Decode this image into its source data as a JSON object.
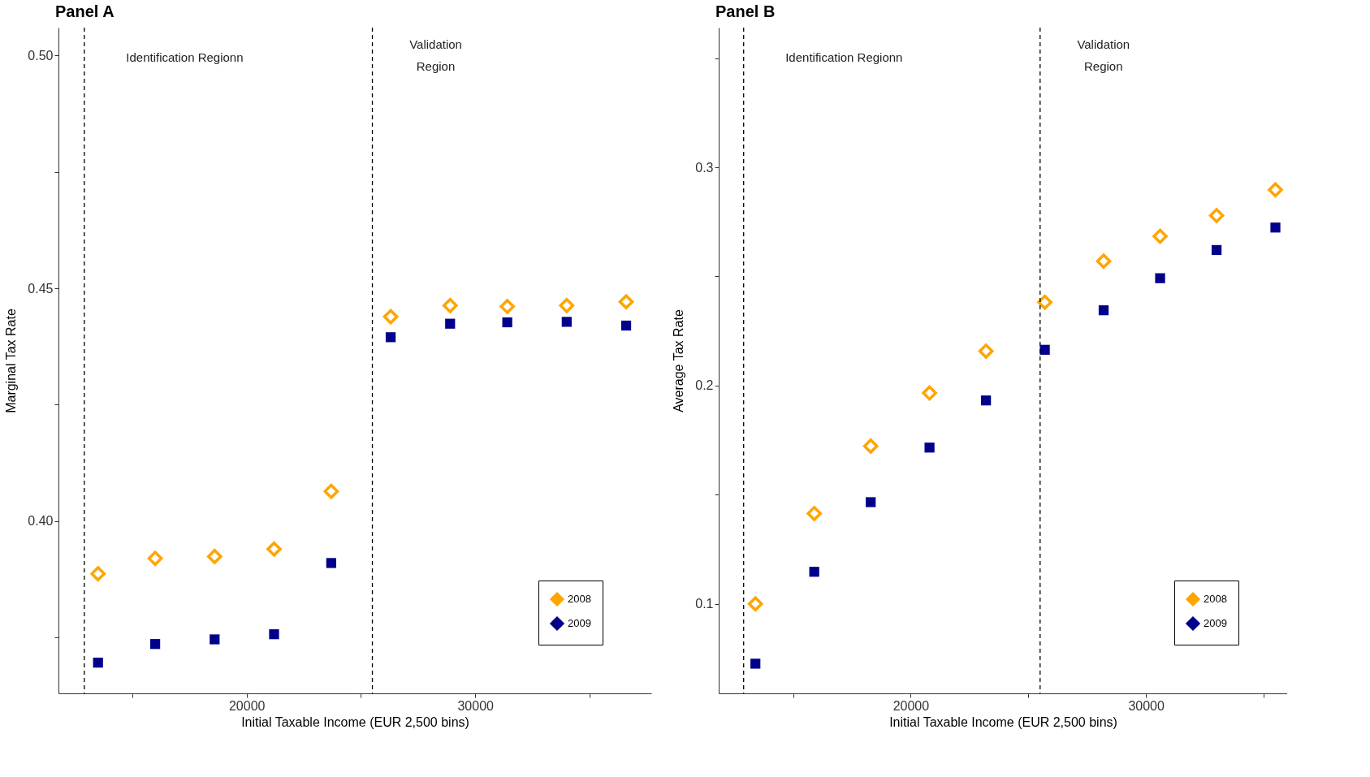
{
  "chart_data": [
    {
      "type": "scatter",
      "title": "Panel A",
      "xlabel": "Initial Taxable Income (EUR 2,500 bins)",
      "ylabel": "Marginal Tax Rate",
      "x": [
        13500,
        16000,
        18600,
        21200,
        23700,
        26300,
        28900,
        31400,
        34000,
        36600
      ],
      "series": [
        {
          "name": "2008",
          "color": "#ffa500",
          "marker": "diamond",
          "values": [
            0.3887,
            0.392,
            0.3924,
            0.394,
            0.4064,
            0.4439,
            0.4463,
            0.4461,
            0.4463,
            0.4471
          ]
        },
        {
          "name": "2009",
          "color": "#00008b",
          "marker": "square",
          "values": [
            0.3696,
            0.3736,
            0.3746,
            0.3757,
            0.391,
            0.4395,
            0.4424,
            0.4427,
            0.4428,
            0.442
          ]
        }
      ],
      "xlim": [
        11770,
        37700
      ],
      "ylim": [
        0.363,
        0.506
      ],
      "xticks": [
        {
          "value": 15000,
          "label": null
        },
        20000,
        {
          "value": 25000,
          "label": null
        },
        30000,
        {
          "value": 35000,
          "label": null
        }
      ],
      "yticks": [
        {
          "value": 0.375,
          "label": null
        },
        {
          "value": 0.4,
          "label": "0.40"
        },
        {
          "value": 0.425,
          "label": null
        },
        0.45,
        {
          "value": 0.475,
          "label": null
        },
        {
          "value": 0.5,
          "label": "0.50"
        }
      ],
      "ref_lines": [
        {
          "axis": "x",
          "value": 12900,
          "line_style": "dashed",
          "color": "#000000"
        },
        {
          "axis": "x",
          "value": 25500,
          "line_style": "dashed",
          "color": "#000000"
        }
      ],
      "annotations": [
        "Identification Regionn",
        "Validation\nRegion"
      ],
      "legend": "bottom right",
      "grid": false
    },
    {
      "type": "scatter",
      "title": "Panel B",
      "xlabel": "Initial Taxable Income (EUR 2,500 bins)",
      "ylabel": "Average Tax Rate",
      "x": [
        13400,
        15900,
        18300,
        20800,
        23200,
        25700,
        28200,
        30600,
        33000,
        35500
      ],
      "series": [
        {
          "name": "2008",
          "color": "#ffa500",
          "marker": "diamond",
          "values": [
            0.1,
            0.1414,
            0.1723,
            0.1966,
            0.2158,
            0.2382,
            0.257,
            0.2684,
            0.2779,
            0.2897
          ]
        },
        {
          "name": "2009",
          "color": "#00008b",
          "marker": "square",
          "values": [
            0.0726,
            0.1147,
            0.1466,
            0.1716,
            0.1932,
            0.2164,
            0.2345,
            0.2492,
            0.2621,
            0.2724
          ]
        }
      ],
      "xlim": [
        11840,
        36000
      ],
      "ylim": [
        0.059,
        0.364
      ],
      "xticks": [
        {
          "value": 15000,
          "label": null
        },
        20000,
        {
          "value": 25000,
          "label": null
        },
        30000,
        {
          "value": 35000,
          "label": null
        }
      ],
      "yticks": [
        0.1,
        {
          "value": 0.15,
          "label": null
        },
        0.2,
        {
          "value": 0.25,
          "label": null
        },
        0.3,
        {
          "value": 0.35,
          "label": null
        }
      ],
      "ref_lines": [
        {
          "axis": "x",
          "value": 12900,
          "line_style": "dashed",
          "color": "#000000"
        },
        {
          "axis": "x",
          "value": 25500,
          "line_style": "dashed",
          "color": "#000000"
        }
      ],
      "annotations": [
        "Identification Regionn",
        "Validation\nRegion"
      ],
      "legend": "bottom right",
      "grid": false
    }
  ]
}
